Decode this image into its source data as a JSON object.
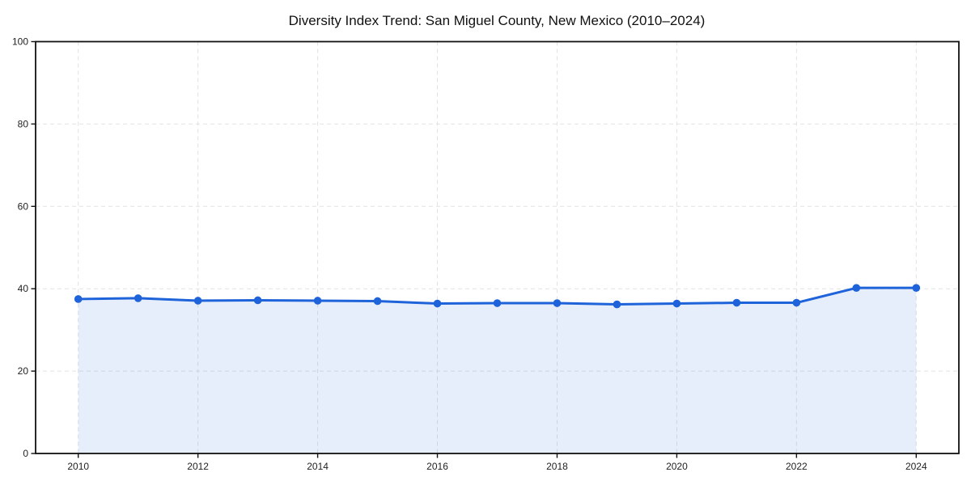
{
  "chart_data": {
    "type": "area",
    "title": "Diversity Index Trend: San Miguel County, New Mexico (2010–2024)",
    "xlabel": "",
    "ylabel": "",
    "x": [
      2010,
      2011,
      2012,
      2013,
      2014,
      2015,
      2016,
      2017,
      2018,
      2019,
      2020,
      2021,
      2022,
      2023,
      2024
    ],
    "values": [
      37.5,
      37.7,
      37.1,
      37.2,
      37.1,
      37.0,
      36.4,
      36.5,
      36.5,
      36.2,
      36.4,
      36.6,
      36.6,
      40.2,
      40.2
    ],
    "ylim": [
      0,
      100
    ],
    "yticks": [
      0,
      20,
      40,
      60,
      80,
      100
    ],
    "xticks": [
      2010,
      2012,
      2014,
      2016,
      2018,
      2020,
      2022,
      2024
    ],
    "grid": true,
    "legend": "none",
    "colors": {
      "line": "#1e63da",
      "marker": "#1e63da",
      "fill": "rgba(30, 99, 218, 0.11)",
      "grid": "#e2e2e2",
      "axis_border": "#111111",
      "tick_label": "#222222",
      "background": "#ffffff"
    }
  }
}
